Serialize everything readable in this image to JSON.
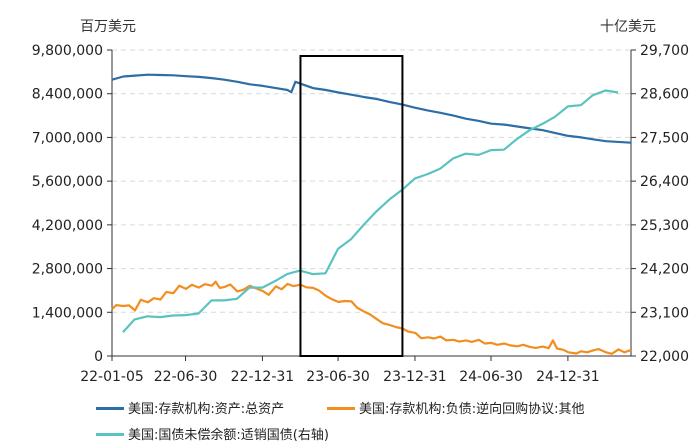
{
  "chart_data": {
    "type": "line",
    "title": "",
    "left_unit": "百万美元",
    "right_unit": "十亿美元",
    "left_axis": {
      "min": 0,
      "max": 9800000,
      "ticks": [
        0,
        1400000,
        2800000,
        4200000,
        5600000,
        7000000,
        8400000,
        9800000
      ],
      "tick_labels": [
        "0",
        "1,400,000",
        "2,800,000",
        "4,200,000",
        "5,600,000",
        "7,000,000",
        "8,400,000",
        "9,800,000"
      ]
    },
    "right_axis": {
      "min": 22000,
      "max": 29700,
      "ticks": [
        22000,
        23100,
        24200,
        25300,
        26400,
        27500,
        28600,
        29700
      ],
      "tick_labels": [
        "22,000",
        "23,100",
        "24,200",
        "25,300",
        "26,400",
        "27,500",
        "28,600",
        "29,700"
      ]
    },
    "x_axis": {
      "start": "2022-01-05",
      "end": "2025-05-31",
      "tick_labels": [
        "22-01-05",
        "22-06-30",
        "22-12-31",
        "23-06-30",
        "23-12-31",
        "24-06-30",
        "24-12-31"
      ],
      "tick_dates": [
        "2022-01-05",
        "2022-06-30",
        "2022-12-31",
        "2023-06-30",
        "2023-12-31",
        "2024-06-30",
        "2024-12-31"
      ]
    },
    "grid": true,
    "highlight_box": {
      "x_start": "2023-04-01",
      "x_end": "2023-12-01"
    },
    "series": [
      {
        "name": "美国:存款机构:资产:总资产",
        "axis": "left",
        "color": "#2e6ea6",
        "points": [
          [
            "2022-01-05",
            8850000
          ],
          [
            "2022-02-01",
            8950000
          ],
          [
            "2022-03-01",
            8980000
          ],
          [
            "2022-04-01",
            9010000
          ],
          [
            "2022-05-01",
            9000000
          ],
          [
            "2022-06-01",
            8990000
          ],
          [
            "2022-07-01",
            8960000
          ],
          [
            "2022-08-01",
            8940000
          ],
          [
            "2022-09-01",
            8900000
          ],
          [
            "2022-10-01",
            8850000
          ],
          [
            "2022-11-01",
            8780000
          ],
          [
            "2022-12-01",
            8700000
          ],
          [
            "2023-01-01",
            8650000
          ],
          [
            "2023-02-01",
            8580000
          ],
          [
            "2023-03-01",
            8520000
          ],
          [
            "2023-03-10",
            8450000
          ],
          [
            "2023-03-20",
            8780000
          ],
          [
            "2023-04-01",
            8720000
          ],
          [
            "2023-05-01",
            8580000
          ],
          [
            "2023-06-01",
            8520000
          ],
          [
            "2023-07-01",
            8440000
          ],
          [
            "2023-08-01",
            8370000
          ],
          [
            "2023-09-01",
            8290000
          ],
          [
            "2023-10-01",
            8230000
          ],
          [
            "2023-11-01",
            8130000
          ],
          [
            "2023-12-01",
            8050000
          ],
          [
            "2024-01-01",
            7950000
          ],
          [
            "2024-02-01",
            7860000
          ],
          [
            "2024-03-01",
            7790000
          ],
          [
            "2024-04-01",
            7700000
          ],
          [
            "2024-05-01",
            7600000
          ],
          [
            "2024-06-01",
            7530000
          ],
          [
            "2024-07-01",
            7440000
          ],
          [
            "2024-08-01",
            7410000
          ],
          [
            "2024-09-01",
            7350000
          ],
          [
            "2024-10-01",
            7290000
          ],
          [
            "2024-11-01",
            7230000
          ],
          [
            "2024-12-01",
            7140000
          ],
          [
            "2025-01-01",
            7050000
          ],
          [
            "2025-02-01",
            7000000
          ],
          [
            "2025-03-01",
            6940000
          ],
          [
            "2025-04-01",
            6880000
          ],
          [
            "2025-05-31",
            6830000
          ]
        ]
      },
      {
        "name": "美国:存款机构:负债:逆向回购协议:其他",
        "axis": "left",
        "color": "#f28e1f",
        "points": [
          [
            "2022-01-05",
            1500000
          ],
          [
            "2022-01-15",
            1630000
          ],
          [
            "2022-02-01",
            1600000
          ],
          [
            "2022-02-15",
            1620000
          ],
          [
            "2022-03-01",
            1460000
          ],
          [
            "2022-03-15",
            1800000
          ],
          [
            "2022-04-01",
            1720000
          ],
          [
            "2022-04-15",
            1850000
          ],
          [
            "2022-05-01",
            1810000
          ],
          [
            "2022-05-15",
            2050000
          ],
          [
            "2022-06-01",
            2010000
          ],
          [
            "2022-06-15",
            2250000
          ],
          [
            "2022-07-01",
            2150000
          ],
          [
            "2022-07-15",
            2280000
          ],
          [
            "2022-08-01",
            2190000
          ],
          [
            "2022-08-15",
            2300000
          ],
          [
            "2022-09-01",
            2250000
          ],
          [
            "2022-09-10",
            2380000
          ],
          [
            "2022-09-20",
            2180000
          ],
          [
            "2022-10-01",
            2210000
          ],
          [
            "2022-10-15",
            2290000
          ],
          [
            "2022-11-01",
            2070000
          ],
          [
            "2022-11-15",
            2120000
          ],
          [
            "2022-12-01",
            2250000
          ],
          [
            "2022-12-15",
            2170000
          ],
          [
            "2023-01-01",
            2080000
          ],
          [
            "2023-01-15",
            1960000
          ],
          [
            "2023-02-01",
            2230000
          ],
          [
            "2023-02-15",
            2140000
          ],
          [
            "2023-03-01",
            2310000
          ],
          [
            "2023-03-15",
            2240000
          ],
          [
            "2023-04-01",
            2280000
          ],
          [
            "2023-04-15",
            2200000
          ],
          [
            "2023-05-01",
            2180000
          ],
          [
            "2023-05-15",
            2100000
          ],
          [
            "2023-06-01",
            1920000
          ],
          [
            "2023-06-15",
            1820000
          ],
          [
            "2023-07-01",
            1730000
          ],
          [
            "2023-07-15",
            1760000
          ],
          [
            "2023-08-01",
            1750000
          ],
          [
            "2023-08-15",
            1540000
          ],
          [
            "2023-09-01",
            1420000
          ],
          [
            "2023-09-15",
            1330000
          ],
          [
            "2023-10-01",
            1180000
          ],
          [
            "2023-10-15",
            1050000
          ],
          [
            "2023-11-01",
            990000
          ],
          [
            "2023-11-15",
            930000
          ],
          [
            "2023-12-01",
            880000
          ],
          [
            "2023-12-15",
            780000
          ],
          [
            "2024-01-01",
            740000
          ],
          [
            "2024-01-15",
            570000
          ],
          [
            "2024-02-01",
            600000
          ],
          [
            "2024-02-15",
            560000
          ],
          [
            "2024-03-01",
            620000
          ],
          [
            "2024-03-15",
            500000
          ],
          [
            "2024-04-01",
            520000
          ],
          [
            "2024-04-15",
            460000
          ],
          [
            "2024-05-01",
            500000
          ],
          [
            "2024-05-15",
            450000
          ],
          [
            "2024-06-01",
            520000
          ],
          [
            "2024-06-15",
            400000
          ],
          [
            "2024-07-01",
            420000
          ],
          [
            "2024-07-15",
            360000
          ],
          [
            "2024-08-01",
            400000
          ],
          [
            "2024-08-15",
            340000
          ],
          [
            "2024-09-01",
            310000
          ],
          [
            "2024-09-15",
            360000
          ],
          [
            "2024-10-01",
            290000
          ],
          [
            "2024-10-15",
            260000
          ],
          [
            "2024-11-01",
            300000
          ],
          [
            "2024-11-15",
            250000
          ],
          [
            "2024-11-25",
            500000
          ],
          [
            "2024-12-05",
            240000
          ],
          [
            "2024-12-20",
            200000
          ],
          [
            "2025-01-01",
            120000
          ],
          [
            "2025-01-20",
            80000
          ],
          [
            "2025-02-01",
            150000
          ],
          [
            "2025-02-15",
            120000
          ],
          [
            "2025-03-01",
            180000
          ],
          [
            "2025-03-15",
            220000
          ],
          [
            "2025-04-01",
            120000
          ],
          [
            "2025-04-15",
            70000
          ],
          [
            "2025-05-01",
            210000
          ],
          [
            "2025-05-15",
            120000
          ],
          [
            "2025-05-31",
            190000
          ]
        ]
      },
      {
        "name": "美国:国债未偿余额:适销国债(右轴)",
        "axis": "right",
        "color": "#5bc2c2",
        "points": [
          [
            "2022-01-31",
            22600
          ],
          [
            "2022-02-28",
            22920
          ],
          [
            "2022-03-31",
            23000
          ],
          [
            "2022-04-30",
            22980
          ],
          [
            "2022-05-31",
            23020
          ],
          [
            "2022-06-30",
            23030
          ],
          [
            "2022-07-31",
            23070
          ],
          [
            "2022-08-31",
            23400
          ],
          [
            "2022-09-30",
            23400
          ],
          [
            "2022-10-31",
            23440
          ],
          [
            "2022-11-30",
            23720
          ],
          [
            "2022-12-31",
            23720
          ],
          [
            "2023-01-31",
            23890
          ],
          [
            "2023-02-28",
            24060
          ],
          [
            "2023-03-31",
            24150
          ],
          [
            "2023-04-30",
            24060
          ],
          [
            "2023-05-31",
            24080
          ],
          [
            "2023-06-30",
            24700
          ],
          [
            "2023-07-31",
            24940
          ],
          [
            "2023-08-31",
            25310
          ],
          [
            "2023-09-30",
            25640
          ],
          [
            "2023-10-31",
            25940
          ],
          [
            "2023-11-30",
            26180
          ],
          [
            "2023-12-31",
            26470
          ],
          [
            "2024-01-31",
            26580
          ],
          [
            "2024-02-29",
            26710
          ],
          [
            "2024-03-31",
            26970
          ],
          [
            "2024-04-30",
            27090
          ],
          [
            "2024-05-31",
            27060
          ],
          [
            "2024-06-30",
            27180
          ],
          [
            "2024-07-31",
            27190
          ],
          [
            "2024-08-31",
            27460
          ],
          [
            "2024-09-30",
            27680
          ],
          [
            "2024-10-31",
            27840
          ],
          [
            "2024-11-30",
            28020
          ],
          [
            "2024-12-31",
            28280
          ],
          [
            "2025-01-31",
            28310
          ],
          [
            "2025-02-28",
            28560
          ],
          [
            "2025-03-31",
            28680
          ],
          [
            "2025-04-30",
            28630
          ]
        ]
      }
    ]
  }
}
